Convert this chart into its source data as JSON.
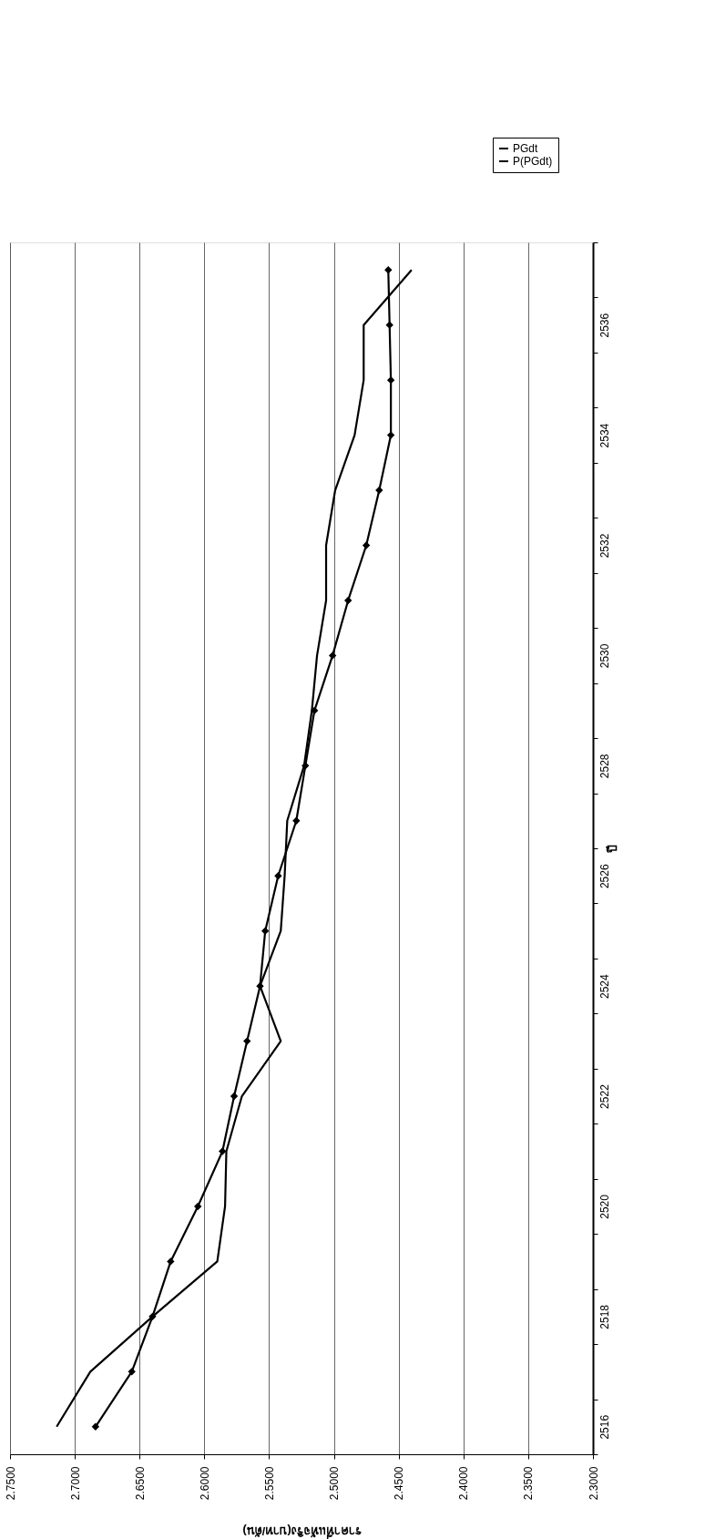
{
  "chart_data": {
    "type": "line",
    "orientation": "horizontal",
    "xlabel": "ราคาที่แท้จริง(บาท/ตัน)",
    "ylabel": "ปี",
    "categories": [
      null,
      "2536",
      null,
      "2534",
      null,
      "2532",
      null,
      "2530",
      null,
      "2528",
      null,
      "2526",
      null,
      "2524",
      null,
      "2522",
      null,
      "2520",
      null,
      "2518",
      null,
      "2516"
    ],
    "series": [
      {
        "name": "PGdt",
        "color": "#000000",
        "marker": "none",
        "values": [
          2.44,
          2.477,
          2.477,
          2.484,
          2.499,
          2.506,
          2.506,
          2.513,
          2.517,
          2.523,
          2.536,
          2.538,
          2.541,
          2.557,
          2.541,
          2.571,
          2.583,
          2.584,
          2.59,
          2.64,
          2.688,
          2.714
        ]
      },
      {
        "name": "P(PGdt)",
        "color": "#000000",
        "marker": "diamond",
        "values": [
          2.458,
          2.457,
          2.456,
          2.456,
          2.465,
          2.475,
          2.489,
          2.501,
          2.515,
          2.522,
          2.529,
          2.543,
          2.553,
          2.557,
          2.567,
          2.577,
          2.586,
          2.605,
          2.626,
          2.64,
          2.656,
          2.684
        ]
      }
    ],
    "xlim": [
      2.75,
      2.3
    ],
    "xticks": [
      {
        "value": 2.75,
        "label": "2.7500"
      },
      {
        "value": 2.7,
        "label": "2.7000"
      },
      {
        "value": 2.65,
        "label": "2.6500"
      },
      {
        "value": 2.6,
        "label": "2.6000"
      },
      {
        "value": 2.55,
        "label": "2.5500"
      },
      {
        "value": 2.5,
        "label": "2.5000"
      },
      {
        "value": 2.45,
        "label": "2.4500"
      },
      {
        "value": 2.4,
        "label": "2.4000"
      },
      {
        "value": 2.35,
        "label": "2.3500"
      },
      {
        "value": 2.3,
        "label": "2.3000"
      }
    ],
    "grid": "x",
    "legend": "top right"
  }
}
